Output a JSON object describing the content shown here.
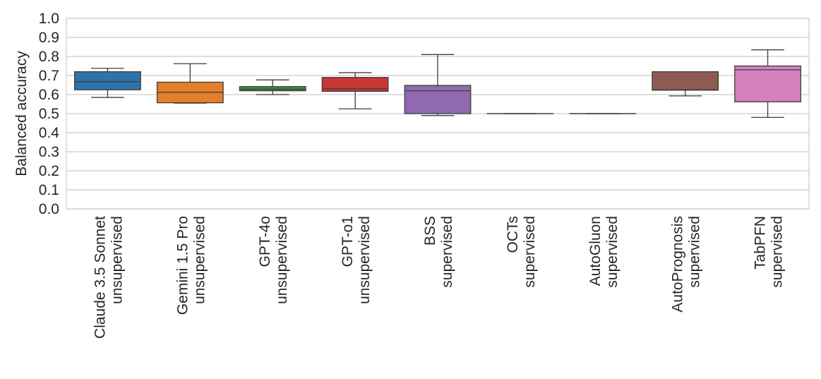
{
  "chart_data": {
    "type": "boxplot",
    "ylabel": "Balanced accuracy",
    "ylim": [
      0.0,
      1.0
    ],
    "yticks": [
      "0.0",
      "0.1",
      "0.2",
      "0.3",
      "0.4",
      "0.5",
      "0.6",
      "0.7",
      "0.8",
      "0.9",
      "1.0"
    ],
    "grid": "horizontal",
    "categories": [
      {
        "line1": "Claude 3.5 Sonnet",
        "line2": "unsupervised",
        "color": "#2f73a8",
        "whisker_low": 0.585,
        "q1": 0.625,
        "median": 0.668,
        "q3": 0.72,
        "whisker_high": 0.738
      },
      {
        "line1": "Gemini 1.5 Pro",
        "line2": "unsupervised",
        "color": "#e37f2a",
        "whisker_low": 0.555,
        "q1": 0.557,
        "median": 0.612,
        "q3": 0.665,
        "whisker_high": 0.762
      },
      {
        "line1": "GPT-4o",
        "line2": "unsupervised",
        "color": "#35963f",
        "whisker_low": 0.6,
        "q1": 0.62,
        "median": 0.628,
        "q3": 0.642,
        "whisker_high": 0.677
      },
      {
        "line1": "GPT-o1",
        "line2": "unsupervised",
        "color": "#c93735",
        "whisker_low": 0.525,
        "q1": 0.617,
        "median": 0.63,
        "q3": 0.69,
        "whisker_high": 0.715
      },
      {
        "line1": "BSS",
        "line2": "supervised",
        "color": "#9069b1",
        "whisker_low": 0.49,
        "q1": 0.5,
        "median": 0.62,
        "q3": 0.648,
        "whisker_high": 0.81
      },
      {
        "line1": "OCTs",
        "line2": "supervised",
        "color": "#8c564b",
        "whisker_low": 0.5,
        "q1": 0.5,
        "median": 0.5,
        "q3": 0.5,
        "whisker_high": 0.5
      },
      {
        "line1": "AutoGluon",
        "line2": "supervised",
        "color": "#e377c2",
        "whisker_low": 0.5,
        "q1": 0.5,
        "median": 0.5,
        "q3": 0.5,
        "whisker_high": 0.5
      },
      {
        "line1": "AutoPrognosis",
        "line2": "supervised",
        "color": "#8e5a52",
        "whisker_low": 0.593,
        "q1": 0.623,
        "median": 0.625,
        "q3": 0.72,
        "whisker_high": 0.72
      },
      {
        "line1": "TabPFN",
        "line2": "supervised",
        "color": "#d680bf",
        "whisker_low": 0.48,
        "q1": 0.562,
        "median": 0.73,
        "q3": 0.75,
        "whisker_high": 0.835
      }
    ]
  }
}
